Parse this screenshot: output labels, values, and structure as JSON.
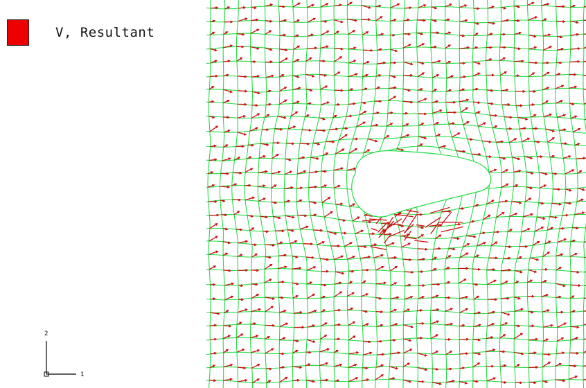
{
  "legend": {
    "label": "V, Resultant",
    "swatch_color": "#ee0000"
  },
  "triad": {
    "axis_vertical": "2",
    "axis_horizontal": "1"
  },
  "colors": {
    "mesh": "#22dd44",
    "vectors": "#cc1111",
    "background": "#ffffff"
  }
}
